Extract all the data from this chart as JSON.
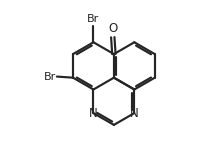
{
  "bg": "#ffffff",
  "lc": "#252525",
  "lw": 1.55,
  "BL": 1.05,
  "bc_x": 6.3,
  "bc_y": 4.1,
  "xlim": [
    0.5,
    9.0
  ],
  "ylim": [
    0.3,
    7.0
  ],
  "figw": 1.99,
  "figh": 1.52,
  "dpi": 100,
  "fs": 8.5
}
